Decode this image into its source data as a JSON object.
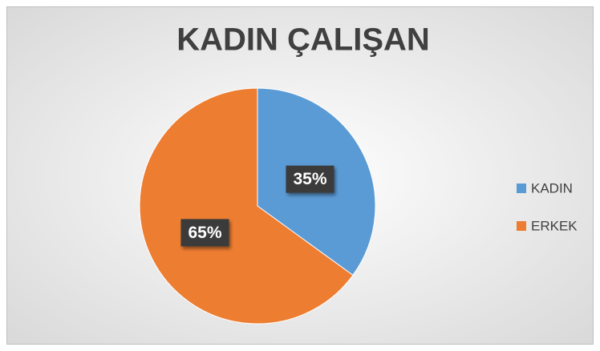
{
  "chart_data": {
    "type": "pie",
    "title": "KADIN ÇALIŞAN",
    "categories": [
      "KADIN",
      "ERKEK"
    ],
    "values": [
      35,
      65
    ],
    "value_labels": [
      "35%",
      "65%"
    ],
    "colors": [
      "#5b9bd5",
      "#ed7d31"
    ],
    "legend": "right"
  }
}
